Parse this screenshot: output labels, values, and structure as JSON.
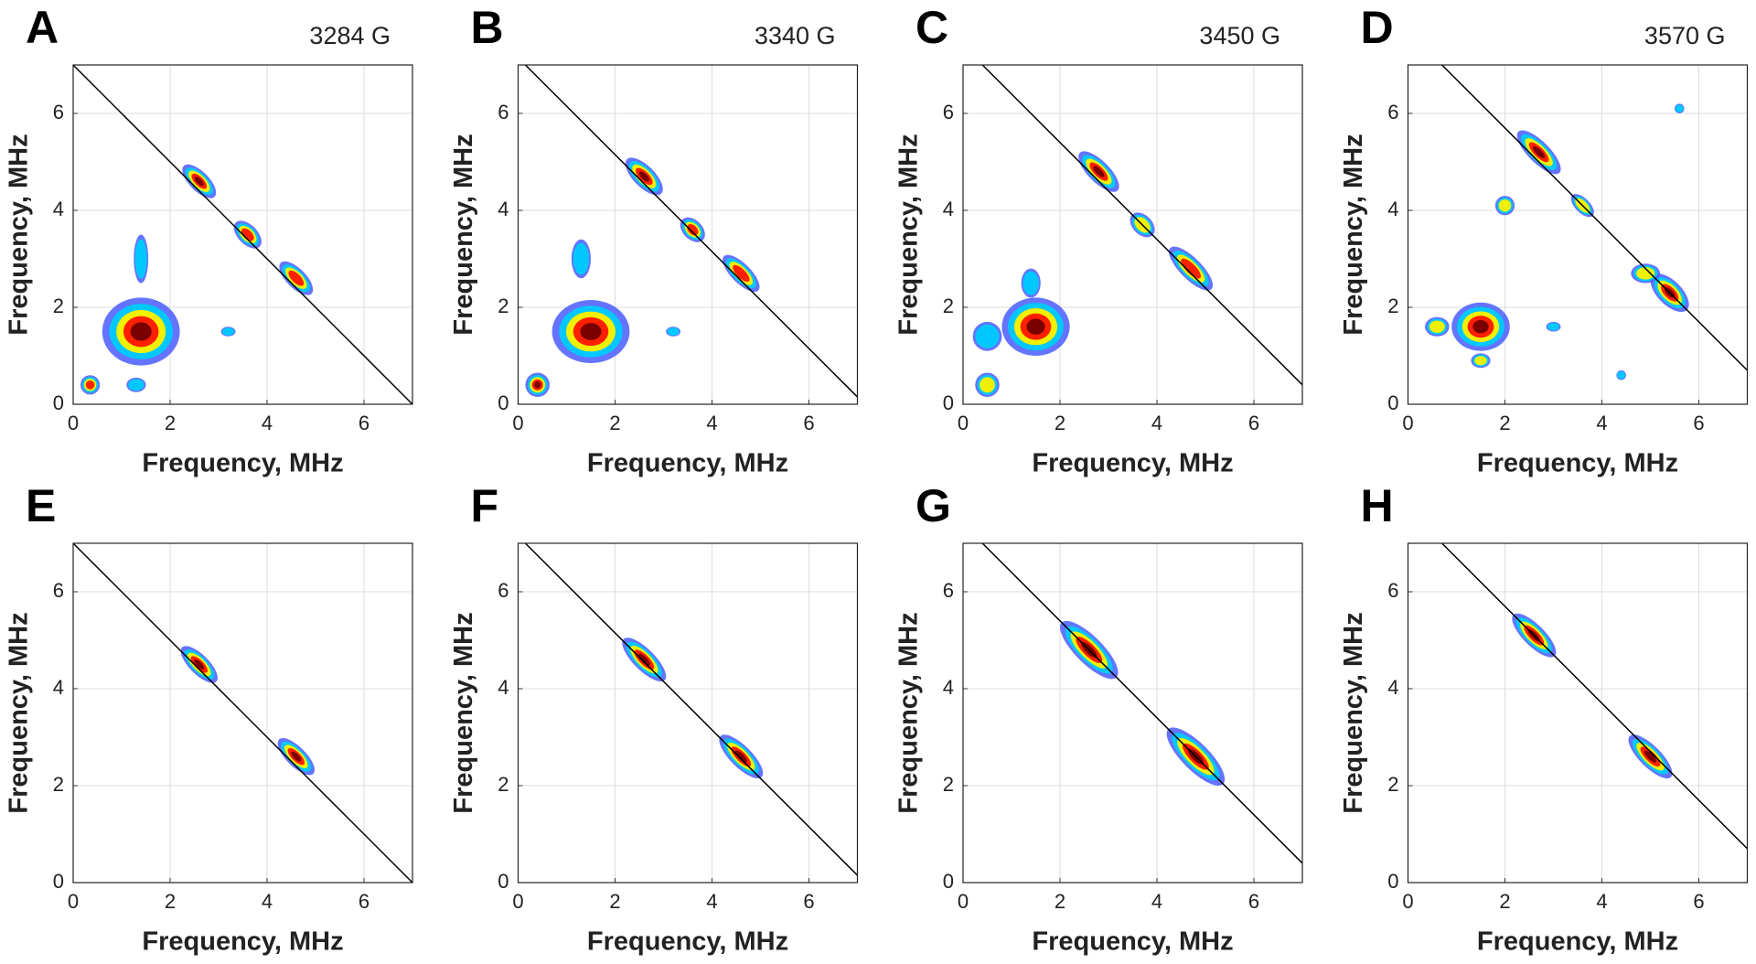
{
  "chart_data": [
    {
      "type": "contour",
      "label": "A",
      "field": "3284 G",
      "xlabel": "Frequency, MHz",
      "ylabel": "Frequency, MHz",
      "xlim": [
        0,
        7
      ],
      "ylim": [
        0,
        7
      ],
      "xticks": [
        0,
        2,
        4,
        6
      ],
      "yticks": [
        0,
        2,
        4,
        6
      ],
      "grid": true,
      "line": {
        "x": [
          0,
          7
        ],
        "y": [
          7,
          0
        ]
      },
      "peaks": {
        "x": [
          1.4,
          0.35,
          2.6,
          3.6,
          4.6,
          1.4,
          3.2,
          1.3
        ],
        "y": [
          1.5,
          0.4,
          4.6,
          3.5,
          2.6,
          3.0,
          1.5,
          0.4
        ],
        "rx": [
          0.8,
          0.2,
          0.45,
          0.35,
          0.45,
          0.15,
          0.15,
          0.2
        ],
        "ry": [
          0.7,
          0.2,
          0.2,
          0.2,
          0.2,
          0.5,
          0.1,
          0.15
        ],
        "angle": [
          0,
          0,
          -45,
          -45,
          -45,
          0,
          0,
          0
        ],
        "level": [
          1,
          0.8,
          0.9,
          0.8,
          0.7,
          0.3,
          0.3,
          0.4
        ]
      }
    },
    {
      "type": "contour",
      "label": "B",
      "field": "3340 G",
      "xlabel": "Frequency, MHz",
      "ylabel": "Frequency, MHz",
      "xlim": [
        0,
        7
      ],
      "ylim": [
        0,
        7
      ],
      "xticks": [
        0,
        2,
        4,
        6
      ],
      "yticks": [
        0,
        2,
        4,
        6
      ],
      "grid": true,
      "line": {
        "x": [
          0.15,
          7
        ],
        "y": [
          7,
          0.15
        ]
      },
      "peaks": {
        "x": [
          1.5,
          0.4,
          2.6,
          3.6,
          4.6,
          1.3,
          3.2
        ],
        "y": [
          1.5,
          0.4,
          4.7,
          3.6,
          2.7,
          3.0,
          1.5
        ],
        "rx": [
          0.8,
          0.25,
          0.5,
          0.3,
          0.5,
          0.2,
          0.15
        ],
        "ry": [
          0.65,
          0.25,
          0.22,
          0.2,
          0.2,
          0.4,
          0.1
        ],
        "angle": [
          0,
          0,
          -45,
          -45,
          -45,
          0,
          0
        ],
        "level": [
          1,
          0.9,
          0.9,
          0.7,
          0.8,
          0.4,
          0.3
        ]
      }
    },
    {
      "type": "contour",
      "label": "C",
      "field": "3450 G",
      "xlabel": "Frequency, MHz",
      "ylabel": "Frequency, MHz",
      "xlim": [
        0,
        7
      ],
      "ylim": [
        0,
        7
      ],
      "xticks": [
        0,
        2,
        4,
        6
      ],
      "yticks": [
        0,
        2,
        4,
        6
      ],
      "grid": true,
      "line": {
        "x": [
          0.4,
          7
        ],
        "y": [
          7,
          0.4
        ]
      },
      "peaks": {
        "x": [
          1.5,
          0.5,
          2.8,
          3.7,
          4.7,
          0.5,
          1.4
        ],
        "y": [
          1.6,
          0.4,
          4.8,
          3.7,
          2.8,
          1.4,
          2.5
        ],
        "rx": [
          0.7,
          0.25,
          0.55,
          0.3,
          0.6,
          0.3,
          0.2
        ],
        "ry": [
          0.6,
          0.25,
          0.22,
          0.2,
          0.22,
          0.3,
          0.3
        ],
        "angle": [
          0,
          0,
          -45,
          -45,
          -45,
          0,
          0
        ],
        "level": [
          1,
          0.5,
          0.9,
          0.6,
          0.7,
          0.4,
          0.3
        ]
      }
    },
    {
      "type": "contour",
      "label": "D",
      "field": "3570 G",
      "xlabel": "Frequency, MHz",
      "ylabel": "Frequency, MHz",
      "xlim": [
        0,
        7
      ],
      "ylim": [
        0,
        7
      ],
      "xticks": [
        0,
        2,
        4,
        6
      ],
      "yticks": [
        0,
        2,
        4,
        6
      ],
      "grid": true,
      "line": {
        "x": [
          0.7,
          7
        ],
        "y": [
          7,
          0.7
        ]
      },
      "peaks": {
        "x": [
          1.5,
          2.7,
          3.6,
          5.4,
          4.9,
          2.0,
          0.6,
          1.5,
          4.4,
          5.6,
          3.0
        ],
        "y": [
          1.6,
          5.2,
          4.1,
          2.3,
          2.7,
          4.1,
          1.6,
          0.9,
          0.6,
          6.1,
          1.6
        ],
        "rx": [
          0.6,
          0.6,
          0.3,
          0.5,
          0.3,
          0.2,
          0.25,
          0.2,
          0.1,
          0.1,
          0.15
        ],
        "ry": [
          0.5,
          0.22,
          0.15,
          0.25,
          0.2,
          0.2,
          0.2,
          0.15,
          0.1,
          0.1,
          0.1
        ],
        "angle": [
          0,
          -45,
          -45,
          -45,
          0,
          0,
          0,
          0,
          0,
          0,
          0
        ],
        "level": [
          1,
          0.9,
          0.5,
          0.9,
          0.6,
          0.6,
          0.6,
          0.6,
          0.4,
          0.4,
          0.4
        ]
      }
    },
    {
      "type": "contour",
      "label": "E",
      "xlabel": "Frequency, MHz",
      "ylabel": "Frequency, MHz",
      "xlim": [
        0,
        7
      ],
      "ylim": [
        0,
        7
      ],
      "xticks": [
        0,
        2,
        4,
        6
      ],
      "yticks": [
        0,
        2,
        4,
        6
      ],
      "grid": true,
      "line": {
        "x": [
          0,
          7
        ],
        "y": [
          7,
          0
        ]
      },
      "peaks": {
        "x": [
          2.6,
          4.6
        ],
        "y": [
          4.5,
          2.6
        ],
        "rx": [
          0.5,
          0.5
        ],
        "ry": [
          0.2,
          0.2
        ],
        "angle": [
          -45,
          -45
        ],
        "level": [
          0.9,
          0.9
        ]
      }
    },
    {
      "type": "contour",
      "label": "F",
      "xlabel": "Frequency, MHz",
      "ylabel": "Frequency, MHz",
      "xlim": [
        0,
        7
      ],
      "ylim": [
        0,
        7
      ],
      "xticks": [
        0,
        2,
        4,
        6
      ],
      "yticks": [
        0,
        2,
        4,
        6
      ],
      "grid": true,
      "line": {
        "x": [
          0.15,
          7
        ],
        "y": [
          7,
          0.15
        ]
      },
      "peaks": {
        "x": [
          2.6,
          4.6
        ],
        "y": [
          4.6,
          2.6
        ],
        "rx": [
          0.6,
          0.6
        ],
        "ry": [
          0.22,
          0.22
        ],
        "angle": [
          -45,
          -45
        ],
        "level": [
          0.9,
          0.9
        ]
      }
    },
    {
      "type": "contour",
      "label": "G",
      "xlabel": "Frequency, MHz",
      "ylabel": "Frequency, MHz",
      "xlim": [
        0,
        7
      ],
      "ylim": [
        0,
        7
      ],
      "xticks": [
        0,
        2,
        4,
        6
      ],
      "yticks": [
        0,
        2,
        4,
        6
      ],
      "grid": true,
      "line": {
        "x": [
          0.4,
          7
        ],
        "y": [
          7,
          0.4
        ]
      },
      "peaks": {
        "x": [
          2.6,
          4.8
        ],
        "y": [
          4.8,
          2.6
        ],
        "rx": [
          0.8,
          0.8
        ],
        "ry": [
          0.28,
          0.28
        ],
        "angle": [
          -45,
          -45
        ],
        "level": [
          0.9,
          0.9
        ]
      }
    },
    {
      "type": "contour",
      "label": "H",
      "xlabel": "Frequency, MHz",
      "ylabel": "Frequency, MHz",
      "xlim": [
        0,
        7
      ],
      "ylim": [
        0,
        7
      ],
      "xticks": [
        0,
        2,
        4,
        6
      ],
      "yticks": [
        0,
        2,
        4,
        6
      ],
      "grid": true,
      "line": {
        "x": [
          0.7,
          7
        ],
        "y": [
          7,
          0.7
        ]
      },
      "peaks": {
        "x": [
          2.6,
          5.0
        ],
        "y": [
          5.1,
          2.6
        ],
        "rx": [
          0.6,
          0.6
        ],
        "ry": [
          0.22,
          0.22
        ],
        "angle": [
          -45,
          -45
        ],
        "level": [
          0.9,
          0.9
        ]
      }
    }
  ]
}
